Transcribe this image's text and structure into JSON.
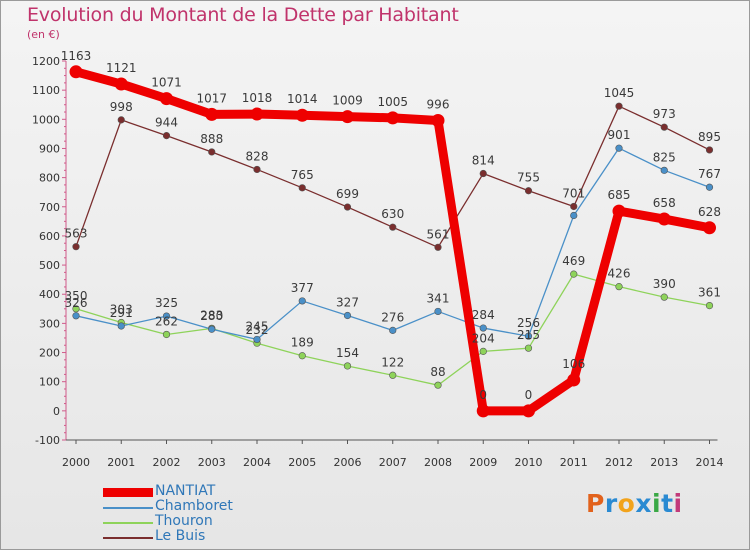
{
  "title": "Evolution du Montant de la Dette par Habitant",
  "unit": "(en €)",
  "logo": {
    "text": "Proxiti",
    "letters": [
      {
        "ch": "P",
        "color": "#e2621c"
      },
      {
        "ch": "r",
        "color": "#2a8ad2"
      },
      {
        "ch": "o",
        "color": "#f2a31b"
      },
      {
        "ch": "x",
        "color": "#2a8ad2"
      },
      {
        "ch": "i",
        "color": "#3aa845"
      },
      {
        "ch": "t",
        "color": "#2a8ad2"
      },
      {
        "ch": "i",
        "color": "#c23a7a"
      }
    ]
  },
  "chart_data": {
    "type": "line",
    "title": "Evolution du Montant de la Dette par Habitant",
    "ylabel": "(en €)",
    "x": [
      "2000",
      "2001",
      "2002",
      "2003",
      "2004",
      "2005",
      "2006",
      "2007",
      "2008",
      "2009",
      "2010",
      "2011",
      "2012",
      "2013",
      "2014"
    ],
    "ylim": [
      -100,
      1200
    ],
    "yticks": [
      -100,
      0,
      100,
      200,
      300,
      400,
      500,
      600,
      700,
      800,
      900,
      1000,
      1100,
      1200
    ],
    "grid": false,
    "legend_position": "bottom-left",
    "series": [
      {
        "name": "NANTIAT",
        "color": "#ee0000",
        "values": [
          1163,
          1121,
          1071,
          1017,
          1018,
          1014,
          1009,
          1005,
          996,
          0,
          0,
          106,
          685,
          658,
          628
        ],
        "labels": [
          "1163",
          "1121",
          "1071",
          "1017",
          "1018",
          "1014",
          "1009",
          "1005",
          "996",
          "0",
          "0",
          "106",
          "685",
          "658",
          "628"
        ]
      },
      {
        "name": "Chamboret",
        "color": "#4a90c8",
        "values": [
          326,
          291,
          325,
          280,
          245,
          377,
          327,
          276,
          341,
          284,
          256,
          670,
          901,
          825,
          767
        ],
        "labels": [
          "326",
          "291",
          "325",
          "280",
          "245",
          "377",
          "327",
          "276",
          "341",
          "284",
          "256",
          "",
          "901",
          "825",
          "767"
        ]
      },
      {
        "name": "Thouron",
        "color": "#8ed35a",
        "values": [
          350,
          303,
          262,
          283,
          232,
          189,
          154,
          122,
          88,
          204,
          215,
          469,
          426,
          390,
          361
        ],
        "labels": [
          "350",
          "303",
          "262",
          "283",
          "232",
          "189",
          "154",
          "122",
          "88",
          "204",
          "215",
          "469",
          "426",
          "390",
          "361"
        ]
      },
      {
        "name": "Le Buis",
        "color": "#7a2e2e",
        "values": [
          563,
          998,
          944,
          888,
          828,
          765,
          699,
          630,
          561,
          814,
          755,
          701,
          1045,
          973,
          895
        ],
        "labels": [
          "563",
          "998",
          "944",
          "888",
          "828",
          "765",
          "699",
          "630",
          "561",
          "814",
          "755",
          "701",
          "1045",
          "973",
          "895"
        ]
      }
    ]
  }
}
